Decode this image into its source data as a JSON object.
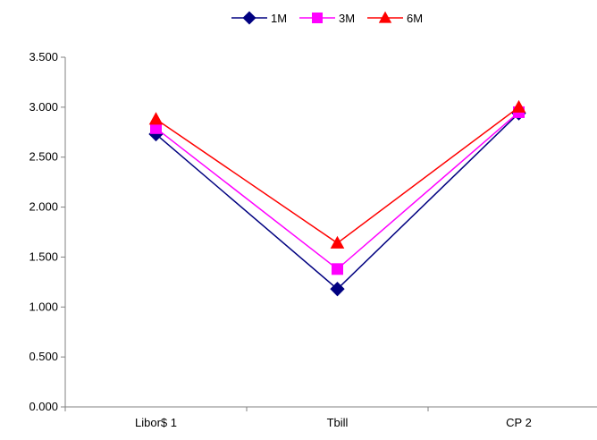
{
  "chart_data": {
    "type": "line",
    "title": "",
    "xlabel": "",
    "ylabel": "",
    "categories": [
      "Libor$ 1",
      "Tbill",
      "CP 2"
    ],
    "ylim": [
      0,
      3.5
    ],
    "yticks": [
      "0.000",
      "0.500",
      "1.000",
      "1.500",
      "2.000",
      "2.500",
      "3.000",
      "3.500"
    ],
    "grid": false,
    "legend_position": "top-center",
    "series": [
      {
        "name": "1M",
        "values": [
          2.73,
          1.18,
          2.94
        ],
        "color": "#000080",
        "marker": "diamond"
      },
      {
        "name": "3M",
        "values": [
          2.79,
          1.38,
          2.95
        ],
        "color": "#ff00ff",
        "marker": "square"
      },
      {
        "name": "6M",
        "values": [
          2.88,
          1.64,
          3.0
        ],
        "color": "#ff0000",
        "marker": "triangle"
      }
    ]
  }
}
